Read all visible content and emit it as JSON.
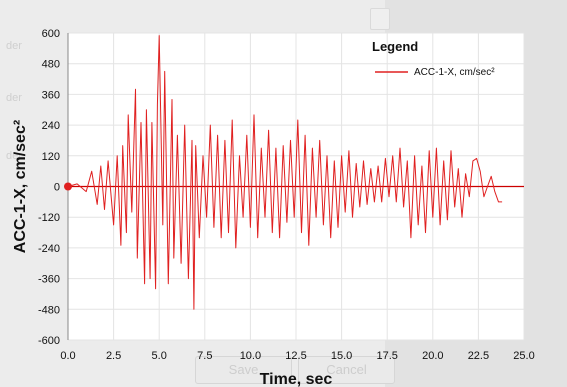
{
  "background": {
    "labels": [
      "der",
      "der",
      "der"
    ],
    "buttons": {
      "save": "Save",
      "cancel": "Cancel"
    }
  },
  "colors": {
    "series": "#e02020",
    "axis": "#cc0000",
    "plot_bg": "#ffffff",
    "grid": "#e4e4e4"
  },
  "chart_data": {
    "type": "line",
    "title": "",
    "xlabel": "Time,  sec",
    "ylabel": "ACC-1-X,  cm/sec²",
    "xlim": [
      0,
      25
    ],
    "ylim": [
      -600,
      600
    ],
    "xticks": [
      "0.0",
      "2.5",
      "5.0",
      "7.5",
      "10.0",
      "12.5",
      "15.0",
      "17.5",
      "20.0",
      "22.5",
      "25.0"
    ],
    "yticks": [
      "600",
      "480",
      "360",
      "240",
      "120",
      "0",
      "-120",
      "-240",
      "-360",
      "-480",
      "-600"
    ],
    "grid": true,
    "legend": {
      "title": "Legend",
      "position": "top-right"
    },
    "series": [
      {
        "name": "ACC-1-X, cm/sec²",
        "x": [
          0,
          0.5,
          1.0,
          1.3,
          1.6,
          1.8,
          2.0,
          2.2,
          2.5,
          2.7,
          2.9,
          3.0,
          3.2,
          3.3,
          3.5,
          3.7,
          3.8,
          4.0,
          4.2,
          4.3,
          4.5,
          4.6,
          4.8,
          4.9,
          5.0,
          5.2,
          5.3,
          5.5,
          5.7,
          5.8,
          6.0,
          6.2,
          6.4,
          6.6,
          6.8,
          6.9,
          7.0,
          7.2,
          7.4,
          7.6,
          7.8,
          8.0,
          8.2,
          8.4,
          8.6,
          8.8,
          9.0,
          9.2,
          9.4,
          9.6,
          9.8,
          10.0,
          10.2,
          10.4,
          10.6,
          10.8,
          11.0,
          11.2,
          11.4,
          11.6,
          11.8,
          12.0,
          12.2,
          12.4,
          12.6,
          12.8,
          13.0,
          13.2,
          13.4,
          13.6,
          13.8,
          14.0,
          14.2,
          14.4,
          14.6,
          14.8,
          15.0,
          15.2,
          15.4,
          15.6,
          15.8,
          16.0,
          16.2,
          16.4,
          16.6,
          16.8,
          17.0,
          17.2,
          17.4,
          17.6,
          17.8,
          18.0,
          18.2,
          18.4,
          18.6,
          18.8,
          19.0,
          19.2,
          19.4,
          19.6,
          19.8,
          20.0,
          20.2,
          20.4,
          20.6,
          20.8,
          21.0,
          21.2,
          21.4,
          21.6,
          21.8,
          22.0,
          22.2,
          22.4,
          22.6,
          22.8,
          23.0,
          23.2,
          23.4,
          23.6,
          23.8
        ],
        "y": [
          0,
          10,
          -20,
          60,
          -70,
          80,
          -90,
          100,
          -150,
          120,
          -230,
          160,
          -180,
          280,
          -100,
          380,
          -280,
          250,
          -380,
          300,
          -360,
          250,
          -400,
          320,
          590,
          -150,
          450,
          -380,
          340,
          -280,
          200,
          -300,
          240,
          -360,
          180,
          -480,
          160,
          -200,
          120,
          -120,
          240,
          -160,
          200,
          -200,
          180,
          -180,
          260,
          -240,
          120,
          -120,
          200,
          -160,
          280,
          -200,
          150,
          -120,
          220,
          -180,
          150,
          -200,
          160,
          -140,
          180,
          -120,
          260,
          -180,
          200,
          -230,
          150,
          -120,
          180,
          -150,
          120,
          -200,
          100,
          -160,
          120,
          -100,
          140,
          -120,
          90,
          -80,
          100,
          -70,
          70,
          -60,
          80,
          -60,
          110,
          -40,
          120,
          -60,
          150,
          -80,
          100,
          -200,
          120,
          -150,
          80,
          -180,
          140,
          -120,
          150,
          -150,
          100,
          -130,
          140,
          -80,
          70,
          -120,
          50,
          -40,
          100,
          110,
          60,
          -40,
          0,
          40,
          -20,
          -60,
          -60
        ]
      }
    ]
  }
}
